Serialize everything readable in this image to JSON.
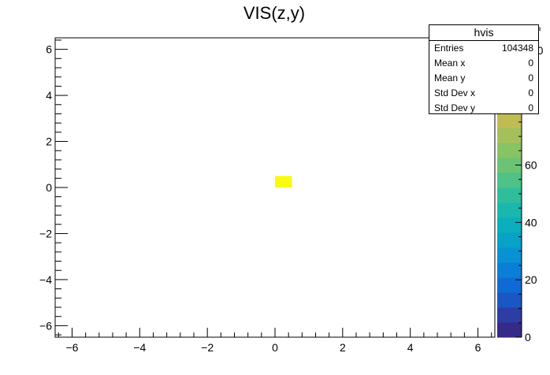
{
  "chart_data": {
    "type": "heatmap",
    "title": "VIS(z,y)",
    "xlabel": "",
    "ylabel": "",
    "xlim": [
      -6.5,
      6.5
    ],
    "ylim": [
      -6.5,
      6.5
    ],
    "x_ticks": [
      "−6",
      "−4",
      "−2",
      "0",
      "2",
      "4",
      "6"
    ],
    "y_ticks": [
      "−6",
      "−4",
      "−2",
      "0",
      "2",
      "4",
      "6"
    ],
    "zlim": [
      0,
      104.348
    ],
    "z_ticks": [
      "0",
      "20",
      "40",
      "60",
      "80",
      "100"
    ],
    "z_exponent": "×10³",
    "cells": [
      {
        "x0": 0.0,
        "x1": 0.5,
        "y0": 0.0,
        "y1": 0.5,
        "value": 104348
      }
    ],
    "palette": [
      "#352a87",
      "#2c3da3",
      "#1a56c4",
      "#0f6ad6",
      "#0b7ed8",
      "#0892d1",
      "#06a2c7",
      "#0aaebc",
      "#1ab7ad",
      "#30bd9b",
      "#4ec287",
      "#6bc474",
      "#88c364",
      "#a5c05a",
      "#c0bc54",
      "#d6b94e",
      "#e9b848",
      "#f7c03a",
      "#fbd82a",
      "#f9fb0e"
    ],
    "grid": false,
    "legend": "none"
  },
  "stats_box": {
    "title": "hvis",
    "rows": [
      {
        "label": "Entries",
        "value": "104348"
      },
      {
        "label": "Mean x",
        "value": "0"
      },
      {
        "label": "Mean y",
        "value": "0"
      },
      {
        "label": "Std Dev x",
        "value": "0"
      },
      {
        "label": "Std Dev y",
        "value": "0"
      }
    ]
  }
}
